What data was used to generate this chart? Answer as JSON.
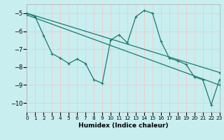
{
  "background_color": "#c8eef0",
  "grid_color": "#e8f8f8",
  "line_color": "#1a7a6e",
  "xlabel": "Humidex (Indice chaleur)",
  "xlim": [
    0,
    23
  ],
  "ylim": [
    -10.5,
    -4.5
  ],
  "yticks": [
    -10,
    -9,
    -8,
    -7,
    -6,
    -5
  ],
  "xticks": [
    0,
    1,
    2,
    3,
    4,
    5,
    6,
    7,
    8,
    9,
    10,
    11,
    12,
    13,
    14,
    15,
    16,
    17,
    18,
    19,
    20,
    21,
    22,
    23
  ],
  "trend1_x": [
    0,
    23
  ],
  "trend1_y": [
    -5.0,
    -8.3
  ],
  "trend2_x": [
    0,
    23
  ],
  "trend2_y": [
    -5.1,
    -9.0
  ],
  "main_x": [
    0,
    1,
    2,
    3,
    4,
    5,
    6,
    7,
    8,
    9,
    10,
    11,
    12,
    13,
    14,
    15,
    16,
    17,
    18,
    19,
    20,
    21,
    22,
    23
  ],
  "main_y": [
    -5.0,
    -5.2,
    -6.25,
    -7.25,
    -7.5,
    -7.8,
    -7.55,
    -7.8,
    -8.7,
    -8.9,
    -6.5,
    -6.2,
    -6.65,
    -5.2,
    -4.85,
    -5.0,
    -6.55,
    -7.5,
    -7.65,
    -7.85,
    -8.55,
    -8.7,
    -10.1,
    -8.7
  ]
}
